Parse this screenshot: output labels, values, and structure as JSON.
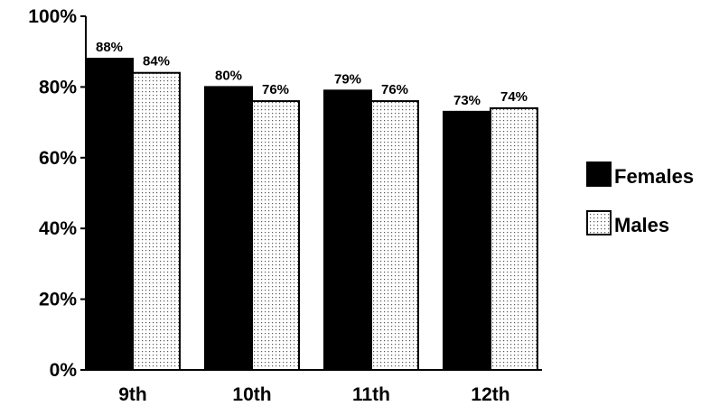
{
  "chart_data": {
    "type": "bar",
    "categories": [
      "9th",
      "10th",
      "11th",
      "12th"
    ],
    "series": [
      {
        "name": "Females",
        "values": [
          88,
          80,
          79,
          73
        ],
        "fill": "#000000"
      },
      {
        "name": "Males",
        "values": [
          84,
          76,
          76,
          74
        ],
        "fill": "dotted"
      }
    ],
    "data_labels": [
      [
        "88%",
        "80%",
        "79%",
        "73%"
      ],
      [
        "84%",
        "76%",
        "76%",
        "74%"
      ]
    ],
    "y_ticks": [
      0,
      20,
      40,
      60,
      80,
      100
    ],
    "y_tick_labels": [
      "0%",
      "20%",
      "40%",
      "60%",
      "80%",
      "100%"
    ],
    "ylim": [
      0,
      100
    ],
    "title": "",
    "xlabel": "",
    "ylabel": "",
    "grid": false,
    "legend": "right"
  }
}
